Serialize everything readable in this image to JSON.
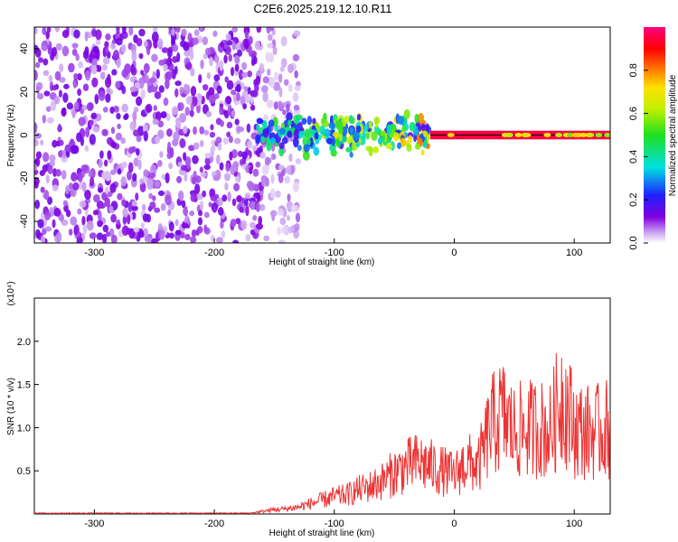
{
  "title": "C2E6.2025.219.12.10.R11",
  "colors": {
    "snr_line": "#ee3333",
    "axes": "#000000"
  },
  "chart_data": [
    {
      "type": "heatmap",
      "xlabel": "Height of straight line (km)",
      "ylabel": "Frequency (Hz)",
      "xlim": [
        -350,
        130
      ],
      "ylim": [
        -50,
        50
      ],
      "x_ticks": [
        -300,
        -200,
        -100,
        0,
        100
      ],
      "y_ticks": [
        -40,
        -20,
        0,
        20,
        40
      ],
      "colorbar": {
        "label": "Normalized spectral amplitude",
        "range": [
          0.0,
          1.0
        ],
        "ticks": [
          0.0,
          0.2,
          0.4,
          0.6,
          0.8
        ],
        "colormap": "white-purple-blue-cyan-green-yellow-red-magenta"
      },
      "regions": [
        {
          "x_range": [
            -350,
            -160
          ],
          "freq_range": [
            -50,
            50
          ],
          "amplitude": 0.08,
          "description": "broadband noise"
        },
        {
          "x_range": [
            -160,
            -130
          ],
          "freq_range": [
            -50,
            50
          ],
          "amplitude": 0.05,
          "description": "sparse noise"
        },
        {
          "x_range": [
            -165,
            -20
          ],
          "freq_range": [
            -10,
            10
          ],
          "amplitude": 0.3,
          "description": "spectral band"
        },
        {
          "x_range": [
            -20,
            130
          ],
          "freq_range": [
            -2,
            2
          ],
          "amplitude": 0.95,
          "description": "narrow line at 0 Hz"
        }
      ]
    },
    {
      "type": "line",
      "xlabel": "Height of straight line (km)",
      "ylabel": "SNR (10 * v/v)",
      "y_multiplier": "(x10⁴)",
      "xlim": [
        -350,
        130
      ],
      "ylim": [
        0,
        2.5
      ],
      "x_ticks": [
        -300,
        -200,
        -100,
        0,
        100
      ],
      "y_ticks": [
        0.5,
        1.0,
        1.5,
        2.0
      ],
      "series": [
        {
          "x": [
            -350,
            -300,
            -250,
            -200,
            -170,
            -160,
            -150,
            -140,
            -130,
            -120,
            -110,
            -100,
            -90,
            -80,
            -70,
            -60,
            -50,
            -40,
            -30,
            -20,
            -10,
            0,
            10,
            20,
            30,
            40,
            50,
            60,
            70,
            80,
            90,
            100,
            110,
            120,
            130
          ],
          "y": [
            0.01,
            0.01,
            0.01,
            0.01,
            0.01,
            0.03,
            0.05,
            0.06,
            0.08,
            0.12,
            0.16,
            0.2,
            0.22,
            0.28,
            0.32,
            0.38,
            0.48,
            0.55,
            0.6,
            0.55,
            0.5,
            0.45,
            0.6,
            0.55,
            1.0,
            1.15,
            0.95,
            0.98,
            1.0,
            0.95,
            1.4,
            1.0,
            0.95,
            0.95,
            1.0
          ]
        }
      ]
    }
  ]
}
